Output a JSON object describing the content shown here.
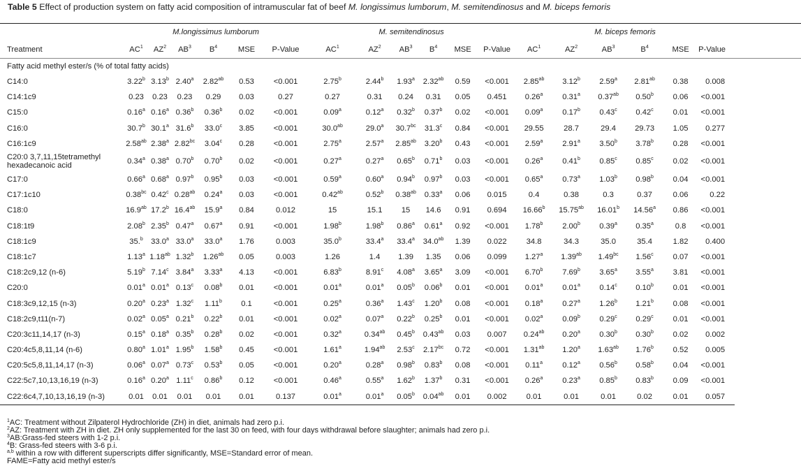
{
  "title": {
    "label": "Table 5",
    "text_parts": [
      "Effect of production system on fatty acid composition of intramuscular fat of beef ",
      "M. longissimus lumborum",
      ", ",
      "M. semitendinosus",
      " and ",
      "M. biceps femoris"
    ]
  },
  "groups": [
    "M.longissimus lumborum",
    "M. semitendinosus",
    "M. biceps femoris"
  ],
  "columns": {
    "treatment": "Treatment",
    "per_group": [
      {
        "label": "AC",
        "sup": "1"
      },
      {
        "label": "AZ",
        "sup": "2"
      },
      {
        "label": "AB",
        "sup": "3"
      },
      {
        "label": "B",
        "sup": "4"
      },
      {
        "label": "MSE",
        "sup": ""
      },
      {
        "label": "P-Value",
        "sup": ""
      }
    ]
  },
  "section_label": "Fatty acid methyl ester/s (% of total fatty acids)",
  "rows": [
    {
      "name": "C14:0",
      "cells": [
        "3.22^b",
        "3.13^b",
        "2.40^a",
        "2.82^ab",
        "0.53",
        "<0.001",
        "2.75^b",
        "2.44^b",
        "1.93^a",
        "2.32^ab",
        "0.59",
        "<0.001",
        "2.85^ab",
        "3.12^b",
        "2.59^a",
        "2.81^ab",
        "0.38",
        "0.008"
      ]
    },
    {
      "name": "C14:1c9",
      "cells": [
        "0.23",
        "0.23",
        "0.23",
        "0.29",
        "0.03",
        "0.27",
        "0.27",
        "0.31",
        "0.24",
        "0.31",
        "0.05",
        "0.451",
        "0.26^a",
        "0.31^a",
        "0.37^ab",
        "0.50^b",
        "0.06",
        "<0.001"
      ]
    },
    {
      "name": "C15:0",
      "cells": [
        "0.16^a",
        "0.16^a",
        "0.36^b",
        "0.36^b",
        "0.02",
        "<0.001",
        "0.09^a",
        "0.12^a",
        "0.32^b",
        "0.37^b",
        "0.02",
        "<0.001",
        "0.09^a",
        "0.17^b",
        "0.43^c",
        "0.42^c",
        "0.01",
        "<0.001"
      ]
    },
    {
      "name": "C16:0",
      "cells": [
        "30.7^b",
        "30.1^a",
        "31.6^b",
        "33.0^c",
        "3.85",
        "<0.001",
        "30.0^ab",
        "29.0^a",
        "30.7^bc",
        "31.3^c",
        "0.84",
        "<0.001",
        "29.55",
        "28.7",
        "29.4",
        "29.73",
        "1.05",
        "0.277"
      ]
    },
    {
      "name": "C16:1c9",
      "cells": [
        "2.58^ab",
        "2.38^a",
        "2.82^bc",
        "3.04^c",
        "0.28",
        "<0.001",
        "2.75^a",
        "2.57^a",
        "2.85^ab",
        "3.20^b",
        "0.43",
        "<0.001",
        "2.59^a",
        "2.91^a",
        "3.50^b",
        "3.78^b",
        "0.28",
        "<0.001"
      ]
    },
    {
      "name": "C20:0 3,7,11,15tetramethyl hexadecanoic acid",
      "cells": [
        "0.34^a",
        "0.38^a",
        "0.70^b",
        "0.70^b",
        "0.02",
        "<0.001",
        "0.27^a",
        "0.27^a",
        "0.65^b",
        "0.71^b",
        "0.03",
        "<0.001",
        "0.26^a",
        "0.41^b",
        "0.85^c",
        "0.85^c",
        "0.02",
        "<0.001"
      ]
    },
    {
      "name": "C17:0",
      "cells": [
        "0.66^a",
        "0.68^a",
        "0.97^b",
        "0.95^b",
        "0.03",
        "<0.001",
        "0.59^a",
        "0.60^a",
        "0.94^b",
        "0.97^b",
        "0.03",
        "<0.001",
        "0.65^a",
        "0.73^a",
        "1.03^b",
        "0.98^b",
        "0.04",
        "<0.001"
      ]
    },
    {
      "name": "C17:1c10",
      "cells": [
        "0.38^bc",
        "0.42^c",
        "0.28^ab",
        "0.24^a",
        "0.03",
        "<0.001",
        "0.42^ab",
        "0.52^b",
        "0.38^ab",
        "0.33^a",
        "0.06",
        "0.015",
        "0.4",
        "0.38",
        "0.3",
        "0.37",
        "0.06",
        "0.22"
      ]
    },
    {
      "name": "C18:0",
      "cells": [
        "16.9^ab",
        "17.2^b",
        "16.4^ab",
        "15.9^a",
        "0.84",
        "0.012",
        "15",
        "15.1",
        "15",
        "14.6",
        "0.91",
        "0.694",
        "16.66^b",
        "15.75^ab",
        "16.01^b",
        "14.56^a",
        "0.86",
        "<0.001"
      ]
    },
    {
      "name": "C18:1t9",
      "cells": [
        "2.08^b",
        "2.35^b",
        "0.47^a",
        "0.67^a",
        "0.91",
        "<0.001",
        "1.98^b",
        "1.98^b",
        "0.86^a",
        "0.61^a",
        "0.92",
        "<0.001",
        "1.78^b",
        "2.00^b",
        "0.39^a",
        "0.35^a",
        "0.8",
        "<0.001"
      ]
    },
    {
      "name": "C18:1c9",
      "cells": [
        "35.^b",
        "33.0^a",
        "33.0^a",
        "33.0^a",
        "1.76",
        "0.003",
        "35.0^b",
        "33.4^a",
        "33.4^a",
        "34.0^ab",
        "1.39",
        "0.022",
        "34.8",
        "34.3",
        "35.0",
        "35.4",
        "1.82",
        "0.400"
      ]
    },
    {
      "name": "C18:1c7",
      "cells": [
        "1.13^a",
        "1.18^ab",
        "1.32^b",
        "1.26^ab",
        "0.05",
        "0.003",
        "1.26",
        "1.4",
        "1.39",
        "1.35",
        "0.06",
        "0.099",
        "1.27^a",
        "1.39^ab",
        "1.49^bc",
        "1.56^c",
        "0.07",
        "<0.001"
      ]
    },
    {
      "name": "C18:2c9,12 (n-6)",
      "cells": [
        "5.19^b",
        "7.14^c",
        "3.84^a",
        "3.33^a",
        "4.13",
        "<0.001",
        "6.83^b",
        "8.91^c",
        "4.08^a",
        "3.65^a",
        "3.09",
        "<0.001",
        "6.70^b",
        "7.69^b",
        "3.65^a",
        "3.55^a",
        "3.81",
        "<0.001"
      ]
    },
    {
      "name": "C20:0",
      "cells": [
        "0.01^a",
        "0.01^a",
        "0.13^c",
        "0.08^b",
        "0.01",
        "<0.001",
        "0.01^a",
        "0.01^a",
        "0.05^b",
        "0.06^b",
        "0.01",
        "<0.001",
        "0.01^a",
        "0.01^a",
        "0.14^c",
        "0.10^b",
        "0.01",
        "<0.001"
      ]
    },
    {
      "name": "C18:3c9,12,15 (n-3)",
      "cells": [
        "0.20^a",
        "0.23^a",
        "1.32^c",
        "1.11^b",
        "0.1",
        "<0.001",
        "0.25^a",
        "0.36^a",
        "1.43^c",
        "1.20^b",
        "0.08",
        "<0.001",
        "0.18^a",
        "0.27^a",
        "1.26^b",
        "1.21^b",
        "0.08",
        "<0.001"
      ]
    },
    {
      "name": "C18:2c9,t11(n-7)",
      "cells": [
        "0.02^a",
        "0.05^a",
        "0.21^b",
        "0.22^b",
        "0.01",
        "<0.001",
        "0.02^a",
        "0.07^a",
        "0.22^b",
        "0.25^b",
        "0.01",
        "<0.001",
        "0.02^a",
        "0.09^b",
        "0.29^c",
        "0.29^c",
        "0.01",
        "<0.001"
      ]
    },
    {
      "name": "C20:3c11,14,17 (n-3)",
      "cells": [
        "0.15^a",
        "0.18^a",
        "0.35^b",
        "0.28^b",
        "0.02",
        "<0.001",
        "0.32^a",
        "0.34^ab",
        "0.45^b",
        "0.43^ab",
        "0.03",
        "0.007",
        "0.24^ab",
        "0.20^a",
        "0.30^b",
        "0.30^b",
        "0.02",
        "0.002"
      ]
    },
    {
      "name": "C20:4c5,8,11,14 (n-6)",
      "cells": [
        "0.80^a",
        "1.01^a",
        "1.95^b",
        "1.58^b",
        "0.45",
        "<0.001",
        "1.61^a",
        "1.94^ab",
        "2.53^c",
        "2.17^bc",
        "0.72",
        "<0.001",
        "1.31^ab",
        "1.20^a",
        "1.63^ab",
        "1.76^b",
        "0.52",
        "0.005"
      ]
    },
    {
      "name": "C20:5c5,8,11,14,17 (n-3)",
      "cells": [
        "0.06^a",
        "0.07^a",
        "0.73^c",
        "0.53^b",
        "0.05",
        "<0.001",
        "0.20^a",
        "0.28^a",
        "0.98^b",
        "0.83^b",
        "0.08",
        "<0.001",
        "0.11^a",
        "0.12^a",
        "0.56^b",
        "0.58^b",
        "0.04",
        "<0.001"
      ]
    },
    {
      "name": "C22:5c7,10,13,16,19 (n-3)",
      "cells": [
        "0.16^a",
        "0.20^a",
        "1.11^c",
        "0.86^b",
        "0.12",
        "<0.001",
        "0.46^a",
        "0.55^a",
        "1.62^b",
        "1.37^b",
        "0.31",
        "<0.001",
        "0.26^a",
        "0.23^a",
        "0.85^b",
        "0.83^b",
        "0.09",
        "<0.001"
      ]
    },
    {
      "name": "C22:6c4,7,10,13,16,19 (n-3)",
      "cells": [
        "0.01",
        "0.01",
        "0.01",
        "0.01",
        "0.01",
        "0.137",
        "0.01^a",
        "0.01^a",
        "0.05^b",
        "0.04^ab",
        "0.01",
        "0.002",
        "0.01",
        "0.01",
        "0.01",
        "0.02",
        "0.01",
        "0.057"
      ]
    }
  ],
  "footnotes": [
    {
      "sup": "1",
      "text": "AC: Treatment without Zilpaterol Hydrochloride (ZH) in diet, animals had zero p.i."
    },
    {
      "sup": "2",
      "text": "AZ: Treatment with ZH in diet. ZH only supplemented for the last 30 on feed, with four days withdrawal before slaughter; animals had zero p.i."
    },
    {
      "sup": "3",
      "text": "AB:Grass-fed steers with 1-2 p.i."
    },
    {
      "sup": "4",
      "text": "B: Grass-fed steers with 3-6 p.i."
    },
    {
      "sup": "a,b",
      "text": " within a row with different superscripts differ significantly, MSE=Standard error of mean."
    },
    {
      "sup": "",
      "text": "FAME=Fatty acid methyl ester/s"
    }
  ]
}
